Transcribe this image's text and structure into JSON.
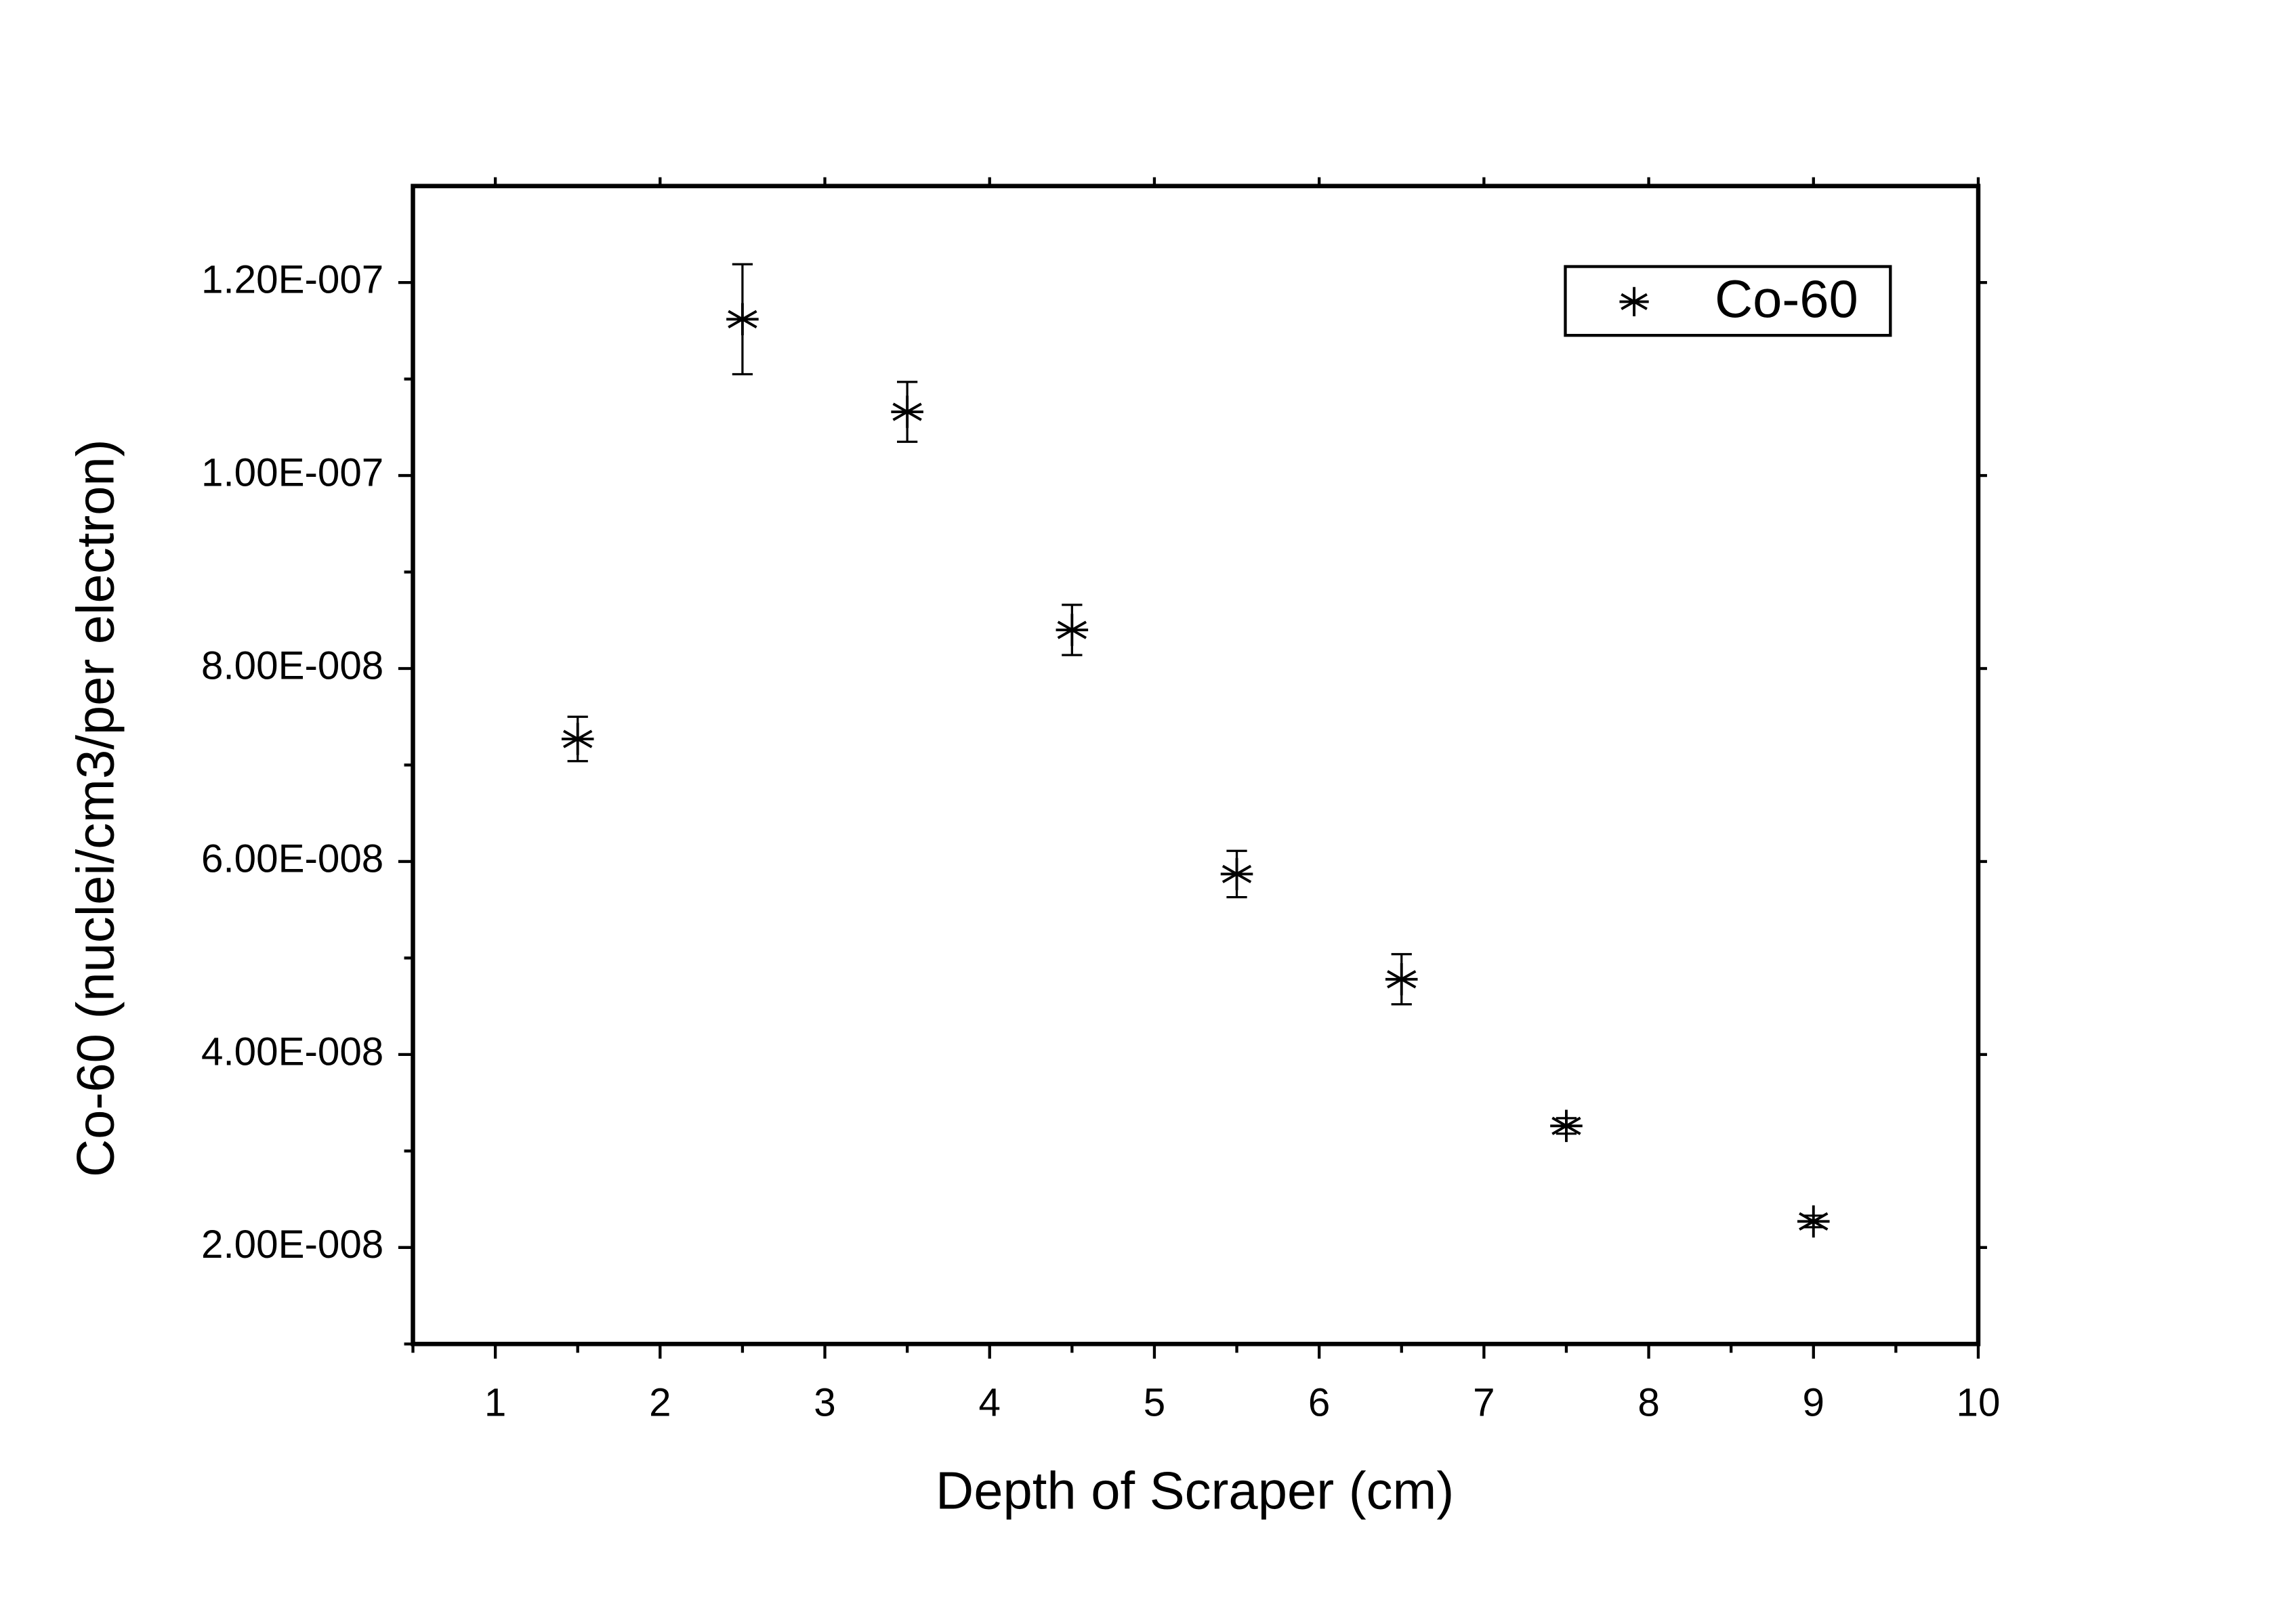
{
  "chart_data": {
    "type": "scatter",
    "x_label": "Depth of Scraper (cm)",
    "y_label": "Co-60 (nuclei/cm3/per electron)",
    "series": [
      {
        "name": "Co-60",
        "color": "#000000",
        "x": [
          1.5,
          2.5,
          3.5,
          4.5,
          5.5,
          6.5,
          7.5,
          9
        ],
        "values": [
          7.27e-08,
          1.162e-07,
          1.066e-07,
          8.4e-08,
          5.87e-08,
          4.78e-08,
          3.26e-08,
          2.27e-08
        ],
        "errors": [
          2.3e-09,
          5.7e-09,
          3.1e-09,
          2.6e-09,
          2.4e-09,
          2.6e-09,
          8e-10,
          6e-10
        ]
      }
    ],
    "xlim": [
      0.5,
      10
    ],
    "ylim": [
      1e-08,
      1.3e-07
    ],
    "xticks": [
      1,
      2,
      3,
      4,
      5,
      6,
      7,
      8,
      9,
      10
    ],
    "minor_xticks": [
      0.5,
      1.5,
      2.5,
      3.5,
      4.5,
      5.5,
      6.5,
      7.5,
      8.5,
      9.5
    ],
    "yticks": [
      {
        "value": 2e-08,
        "label": "2.00E-008"
      },
      {
        "value": 4e-08,
        "label": "4.00E-008"
      },
      {
        "value": 6e-08,
        "label": "6.00E-008"
      },
      {
        "value": 8e-08,
        "label": "8.00E-008"
      },
      {
        "value": 1e-07,
        "label": "1.00E-007"
      },
      {
        "value": 1.2e-07,
        "label": "1.20E-007"
      }
    ],
    "minor_yticks": [
      1e-08,
      3e-08,
      5e-08,
      7e-08,
      9e-08,
      1.1e-07
    ],
    "legend": "upper right",
    "grid": false
  }
}
